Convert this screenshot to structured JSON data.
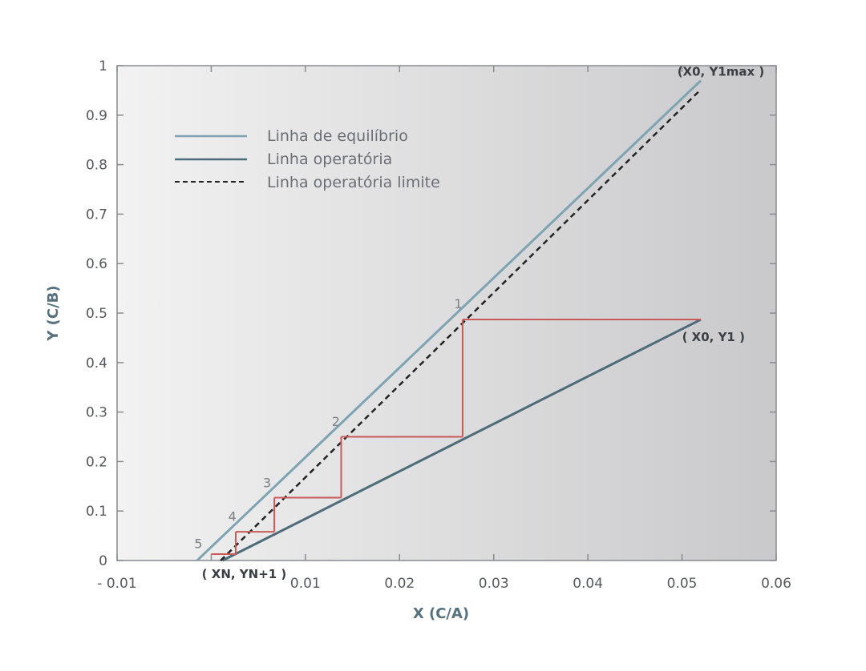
{
  "chart_data": {
    "type": "line",
    "xlabel": "X (C/A)",
    "ylabel": "Y (C/B)",
    "xlim": [
      -0.01,
      0.06
    ],
    "ylim": [
      0,
      1
    ],
    "x_ticks": [
      -0.01,
      0.01,
      0.02,
      0.03,
      0.04,
      0.05,
      0.06
    ],
    "x_tick_labels": [
      "- 0.01",
      "0.01",
      "0.02",
      "0.03",
      "0.04",
      "0.05",
      "0.06"
    ],
    "y_ticks": [
      0,
      0.1,
      0.2,
      0.3,
      0.4,
      0.5,
      0.6,
      0.7,
      0.8,
      0.9,
      1
    ],
    "y_tick_labels": [
      "0",
      "0.1",
      "0.2",
      "0.3",
      "0.4",
      "0.5",
      "0.6",
      "0.7",
      "0.8",
      "0.9",
      "1"
    ],
    "grid": false,
    "legend_position": "top-left",
    "series": [
      {
        "name": "Linha de equilíbrio",
        "style": "solid",
        "color": "#7ea3b2",
        "x": [
          -0.0015,
          0.052
        ],
        "y": [
          0,
          0.97
        ]
      },
      {
        "name": "Linha operatória",
        "style": "solid",
        "color": "#4d6b78",
        "x": [
          0.0012,
          0.052
        ],
        "y": [
          0,
          0.487
        ]
      },
      {
        "name": "Linha operatória limite",
        "style": "dashed",
        "color": "#222222",
        "x": [
          0.001,
          0.052
        ],
        "y": [
          0,
          0.952
        ]
      }
    ],
    "stages": {
      "color": "#c95a5a",
      "points": [
        [
          0.052,
          0.487
        ],
        [
          0.0267,
          0.487
        ],
        [
          0.0267,
          0.25
        ],
        [
          0.0138,
          0.25
        ],
        [
          0.0138,
          0.127
        ],
        [
          0.0067,
          0.127
        ],
        [
          0.0067,
          0.058
        ],
        [
          0.0026,
          0.058
        ],
        [
          0.0026,
          0.013
        ],
        [
          0.0,
          0.013
        ]
      ]
    },
    "stage_labels": [
      {
        "text": "1",
        "x": 0.0258,
        "y": 0.51
      },
      {
        "text": "2",
        "x": 0.0128,
        "y": 0.272
      },
      {
        "text": "3",
        "x": 0.0055,
        "y": 0.148
      },
      {
        "text": "4",
        "x": 0.0018,
        "y": 0.08
      },
      {
        "text": "5",
        "x": -0.0018,
        "y": 0.025
      }
    ],
    "annotations": [
      {
        "text": "(X0, Y1max )",
        "x": 0.0495,
        "y": 0.98
      },
      {
        "text": "( X0, Y1 )",
        "x": 0.05,
        "y": 0.443
      },
      {
        "text": "( XN, YN+1 )",
        "x": -0.001,
        "y": -0.036
      }
    ]
  }
}
